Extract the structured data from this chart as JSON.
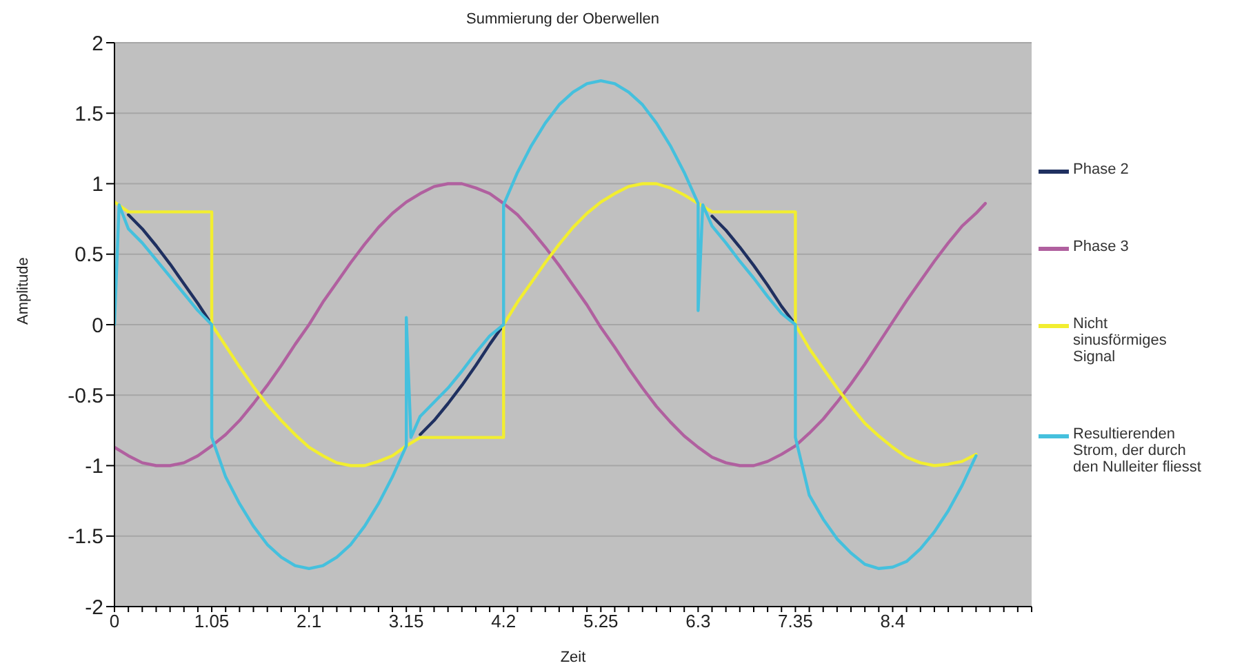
{
  "chart_data": {
    "type": "line",
    "title": "Summierung der Oberwellen",
    "xlabel": "Zeit",
    "ylabel": "Amplitude",
    "xlim": [
      0,
      9.9
    ],
    "ylim": [
      -2,
      2
    ],
    "yticks": [
      -2,
      -1.5,
      -1,
      -0.5,
      0,
      0.5,
      1,
      1.5,
      2
    ],
    "xticks": [
      0,
      {
        "value": 0.15,
        "label": null
      },
      {
        "value": 0.3,
        "label": null
      },
      {
        "value": 0.45,
        "label": null
      },
      {
        "value": 0.6,
        "label": null
      },
      {
        "value": 0.75,
        "label": null
      },
      {
        "value": 0.9,
        "label": null
      },
      1.05,
      {
        "value": 1.2,
        "label": null
      },
      {
        "value": 1.35,
        "label": null
      },
      {
        "value": 1.5,
        "label": null
      },
      {
        "value": 1.65,
        "label": null
      },
      {
        "value": 1.8,
        "label": null
      },
      {
        "value": 1.95,
        "label": null
      },
      2.1,
      {
        "value": 2.25,
        "label": null
      },
      {
        "value": 2.4,
        "label": null
      },
      {
        "value": 2.55,
        "label": null
      },
      {
        "value": 2.7,
        "label": null
      },
      {
        "value": 2.85,
        "label": null
      },
      {
        "value": 3,
        "label": null
      },
      3.15,
      {
        "value": 3.3,
        "label": null
      },
      {
        "value": 3.45,
        "label": null
      },
      {
        "value": 3.6,
        "label": null
      },
      {
        "value": 3.75,
        "label": null
      },
      {
        "value": 3.9,
        "label": null
      },
      {
        "value": 4.05,
        "label": null
      },
      4.2,
      {
        "value": 4.35,
        "label": null
      },
      {
        "value": 4.5,
        "label": null
      },
      {
        "value": 4.65,
        "label": null
      },
      {
        "value": 4.8,
        "label": null
      },
      {
        "value": 4.95,
        "label": null
      },
      {
        "value": 5.1,
        "label": null
      },
      5.25,
      {
        "value": 5.4,
        "label": null
      },
      {
        "value": 5.55,
        "label": null
      },
      {
        "value": 5.7,
        "label": null
      },
      {
        "value": 5.85,
        "label": null
      },
      {
        "value": 6,
        "label": null
      },
      {
        "value": 6.15,
        "label": null
      },
      6.3,
      {
        "value": 6.45,
        "label": null
      },
      {
        "value": 6.6,
        "label": null
      },
      {
        "value": 6.75,
        "label": null
      },
      {
        "value": 6.9,
        "label": null
      },
      {
        "value": 7.05,
        "label": null
      },
      {
        "value": 7.2,
        "label": null
      },
      7.35,
      {
        "value": 7.5,
        "label": null
      },
      {
        "value": 7.65,
        "label": null
      },
      {
        "value": 7.8,
        "label": null
      },
      {
        "value": 7.95,
        "label": null
      },
      {
        "value": 8.1,
        "label": null
      },
      {
        "value": 8.25,
        "label": null
      },
      8.4,
      {
        "value": 8.55,
        "label": null
      },
      {
        "value": 8.7,
        "label": null
      },
      {
        "value": 8.85,
        "label": null
      },
      {
        "value": 9,
        "label": null
      },
      {
        "value": 9.15,
        "label": null
      },
      {
        "value": 9.3,
        "label": null
      },
      {
        "value": 9.45,
        "label": null
      },
      {
        "value": 9.6,
        "label": null
      },
      {
        "value": 9.75,
        "label": null
      },
      {
        "value": 9.9,
        "label": null
      }
    ],
    "grid": "y",
    "legend": "right",
    "marker": "none",
    "line_style": "solid",
    "series": [
      {
        "name": "Phase 2",
        "color": "#1f3060",
        "x": [
          0.15,
          0.3,
          0.45,
          0.6,
          0.75,
          0.9,
          1.05,
          2.1,
          3.3,
          3.45,
          3.6,
          3.75,
          3.9,
          4.05,
          4.2,
          5.25,
          6.45,
          6.6,
          6.75,
          6.9,
          7.05,
          7.2,
          7.35
        ],
        "values": [
          0.78,
          0.68,
          0.56,
          0.43,
          0.29,
          0.15,
          0,
          null,
          -0.78,
          -0.68,
          -0.56,
          -0.43,
          -0.29,
          -0.14,
          0,
          null,
          0.77,
          0.67,
          0.55,
          0.42,
          0.28,
          0.13,
          0
        ]
      },
      {
        "name": "Phase 3",
        "color": "#b0609f",
        "x": [
          0,
          0.15,
          0.3,
          0.45,
          0.6,
          0.75,
          0.9,
          1.05,
          1.2,
          1.35,
          1.5,
          1.65,
          1.8,
          1.95,
          2.1,
          2.25,
          2.4,
          2.55,
          2.7,
          2.85,
          3,
          3.15,
          3.3,
          3.45,
          3.6,
          3.75,
          3.9,
          4.05,
          4.2,
          4.35,
          4.5,
          4.65,
          4.8,
          4.95,
          5.1,
          5.25,
          5.4,
          5.55,
          5.7,
          5.85,
          6,
          6.15,
          6.3,
          6.45,
          6.6,
          6.75,
          6.9,
          7.05,
          7.2,
          7.35,
          7.5,
          7.65,
          7.8,
          7.95,
          8.1,
          8.25,
          8.4,
          8.55,
          8.7,
          8.85,
          9,
          9.15,
          9.3,
          9.4
        ],
        "values": [
          -0.87,
          -0.93,
          -0.98,
          -1,
          -1,
          -0.98,
          -0.93,
          -0.86,
          -0.78,
          -0.68,
          -0.56,
          -0.43,
          -0.29,
          -0.14,
          0,
          0.16,
          0.3,
          0.44,
          0.57,
          0.69,
          0.79,
          0.87,
          0.93,
          0.98,
          1,
          1,
          0.97,
          0.93,
          0.86,
          0.78,
          0.67,
          0.55,
          0.42,
          0.28,
          0.14,
          -0.02,
          -0.16,
          -0.31,
          -0.45,
          -0.58,
          -0.69,
          -0.79,
          -0.87,
          -0.94,
          -0.98,
          -1,
          -1,
          -0.97,
          -0.92,
          -0.86,
          -0.77,
          -0.67,
          -0.55,
          -0.42,
          -0.28,
          -0.13,
          0.02,
          0.17,
          0.31,
          0.45,
          0.58,
          0.7,
          0.79,
          0.86
        ]
      },
      {
        "name": "Nicht sinusförmiges Signal",
        "color": "#f2ee30",
        "x": [
          0,
          0.15,
          0.3,
          0.45,
          0.6,
          0.75,
          0.9,
          1.05,
          1.05,
          1.2,
          1.35,
          1.5,
          1.65,
          1.8,
          1.95,
          2.1,
          2.25,
          2.4,
          2.55,
          2.7,
          2.85,
          3,
          3.15,
          3.3,
          3.45,
          3.6,
          3.75,
          3.9,
          4.05,
          4.2,
          4.2,
          4.35,
          4.5,
          4.65,
          4.8,
          4.95,
          5.1,
          5.25,
          5.4,
          5.55,
          5.7,
          5.85,
          6,
          6.15,
          6.3,
          6.45,
          6.6,
          6.75,
          6.9,
          7.05,
          7.2,
          7.35,
          7.35,
          7.5,
          7.65,
          7.8,
          7.95,
          8.1,
          8.25,
          8.4,
          8.55,
          8.7,
          8.85,
          9,
          9.15,
          9.3
        ],
        "values": [
          0.87,
          0.8,
          0.8,
          0.8,
          0.8,
          0.8,
          0.8,
          0.8,
          0,
          -0.15,
          -0.3,
          -0.44,
          -0.57,
          -0.68,
          -0.78,
          -0.87,
          -0.93,
          -0.98,
          -1,
          -1,
          -0.97,
          -0.93,
          -0.86,
          -0.8,
          -0.8,
          -0.8,
          -0.8,
          -0.8,
          -0.8,
          -0.8,
          0,
          0.16,
          0.3,
          0.44,
          0.57,
          0.69,
          0.79,
          0.87,
          0.93,
          0.98,
          1,
          1,
          0.97,
          0.92,
          0.86,
          0.8,
          0.8,
          0.8,
          0.8,
          0.8,
          0.8,
          0.8,
          0,
          -0.17,
          -0.31,
          -0.45,
          -0.58,
          -0.7,
          -0.79,
          -0.87,
          -0.94,
          -0.98,
          -1,
          -0.99,
          -0.97,
          -0.92
        ]
      },
      {
        "name": "Resultierenden Strom, der durch den Nulleiter fliesst",
        "color": "#45c0dd",
        "x": [
          0,
          0.05,
          0.15,
          0.3,
          0.45,
          0.6,
          0.75,
          0.9,
          1.05,
          1.05,
          1.2,
          1.35,
          1.5,
          1.65,
          1.8,
          1.95,
          2.1,
          2.25,
          2.4,
          2.55,
          2.7,
          2.85,
          3,
          3.15,
          3.15,
          3.2,
          3.3,
          3.45,
          3.6,
          3.75,
          3.9,
          4.05,
          4.2,
          4.2,
          4.35,
          4.5,
          4.65,
          4.8,
          4.95,
          5.1,
          5.25,
          5.4,
          5.55,
          5.7,
          5.85,
          6,
          6.15,
          6.3,
          6.3,
          6.35,
          6.45,
          6.6,
          6.75,
          6.9,
          7.05,
          7.2,
          7.35,
          7.35,
          7.5,
          7.65,
          7.8,
          7.95,
          8.1,
          8.25,
          8.4,
          8.55,
          8.7,
          8.85,
          9,
          9.15,
          9.3
        ],
        "values": [
          0,
          0.85,
          0.68,
          0.58,
          0.46,
          0.34,
          0.22,
          0.1,
          0,
          -0.8,
          -1.08,
          -1.27,
          -1.43,
          -1.56,
          -1.65,
          -1.71,
          -1.73,
          -1.71,
          -1.65,
          -1.56,
          -1.43,
          -1.27,
          -1.08,
          -0.86,
          0.05,
          -0.8,
          -0.65,
          -0.55,
          -0.45,
          -0.33,
          -0.2,
          -0.08,
          0,
          0.85,
          1.08,
          1.27,
          1.43,
          1.56,
          1.65,
          1.71,
          1.73,
          1.71,
          1.65,
          1.56,
          1.43,
          1.27,
          1.08,
          0.86,
          0.1,
          0.85,
          0.7,
          0.58,
          0.45,
          0.33,
          0.2,
          0.08,
          0,
          -0.8,
          -1.21,
          -1.38,
          -1.52,
          -1.62,
          -1.7,
          -1.73,
          -1.72,
          -1.68,
          -1.59,
          -1.47,
          -1.32,
          -1.14,
          -0.93
        ]
      }
    ]
  }
}
